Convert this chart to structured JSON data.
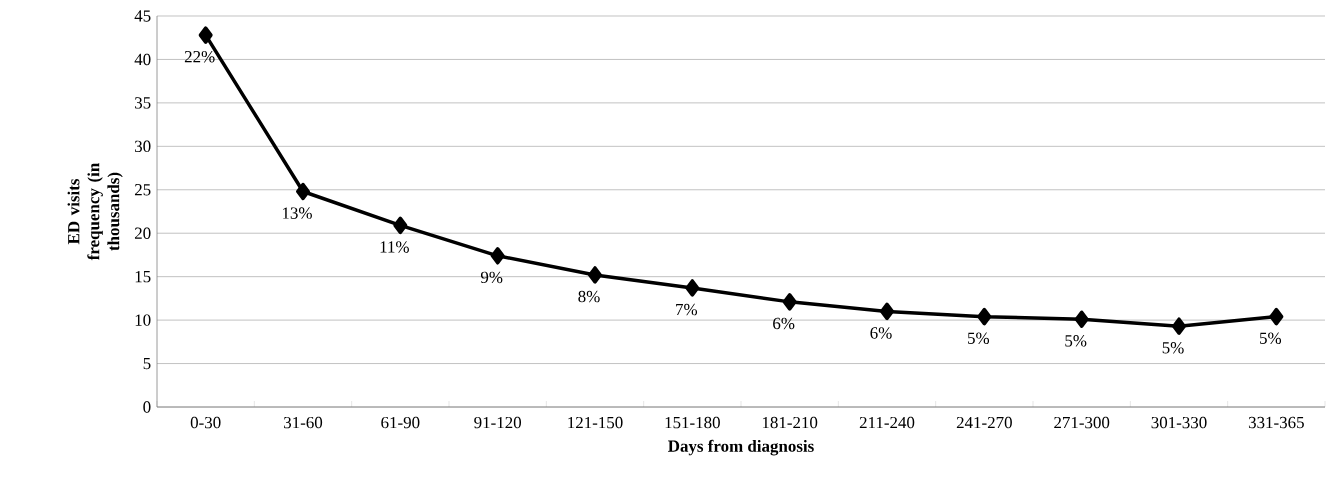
{
  "chart_data": {
    "type": "line",
    "xlabel": "Days from diagnosis",
    "ylabel": "ED visits frequency (in thousands)",
    "categories": [
      "0-30",
      "31-60",
      "61-90",
      "91-120",
      "121-150",
      "151-180",
      "181-210",
      "211-240",
      "241-270",
      "271-300",
      "301-330",
      "331-365"
    ],
    "values": [
      42.8,
      24.8,
      20.9,
      17.4,
      15.2,
      13.7,
      12.1,
      11.0,
      10.4,
      10.1,
      9.3,
      10.4
    ],
    "annotations": [
      {
        "text": "22%",
        "x": "0-30",
        "y": 42.8
      },
      {
        "text": "13%",
        "x": "31-60",
        "y": 24.8
      },
      {
        "text": "11%",
        "x": "61-90",
        "y": 20.9
      },
      {
        "text": "9%",
        "x": "91-120",
        "y": 17.4
      },
      {
        "text": "8%",
        "x": "121-150",
        "y": 15.2
      },
      {
        "text": "7%",
        "x": "151-180",
        "y": 13.7
      },
      {
        "text": "6%",
        "x": "181-210",
        "y": 12.1
      },
      {
        "text": "6%",
        "x": "211-240",
        "y": 11.0
      },
      {
        "text": "5%",
        "x": "241-270",
        "y": 10.4
      },
      {
        "text": "5%",
        "x": "271-300",
        "y": 10.1
      },
      {
        "text": "5%",
        "x": "301-330",
        "y": 9.3
      },
      {
        "text": "5%",
        "x": "331-365",
        "y": 10.4
      }
    ],
    "color": "#000000",
    "marker": "diamond",
    "grid": "y",
    "ylim": [
      0,
      45
    ],
    "yticks": [
      0,
      5,
      10,
      15,
      20,
      25,
      30,
      35,
      40,
      45
    ]
  }
}
